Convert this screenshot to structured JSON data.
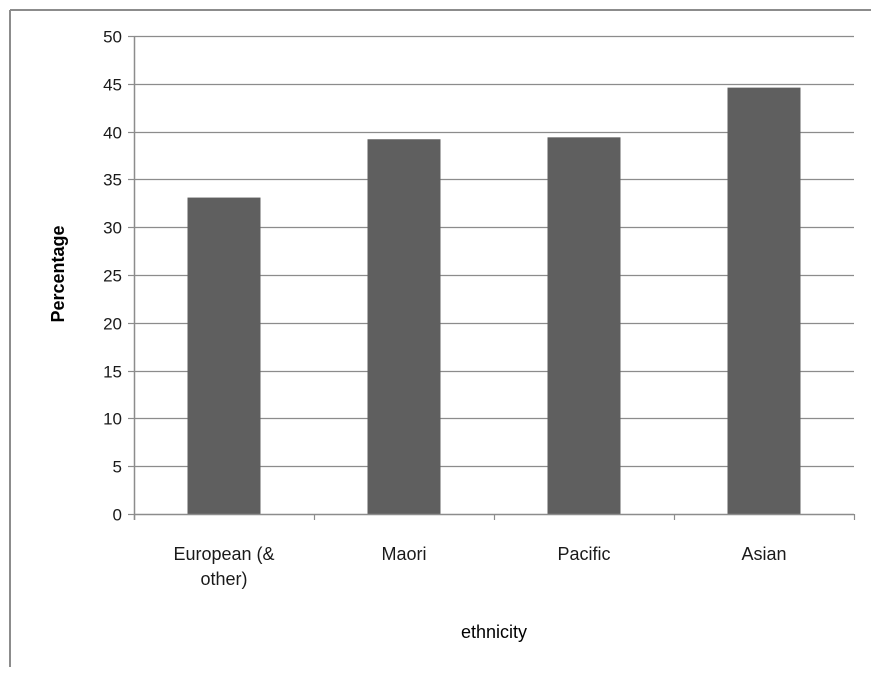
{
  "chart_data": {
    "type": "bar",
    "categories": [
      "European (& other)",
      "Maori",
      "Pacific",
      "Asian"
    ],
    "category_label_lines": [
      [
        "European (&",
        "other)"
      ],
      [
        "Maori"
      ],
      [
        "Pacific"
      ],
      [
        "Asian"
      ]
    ],
    "series": [
      {
        "values": [
          33.1,
          39.2,
          39.4,
          44.6
        ]
      }
    ],
    "title": "",
    "xlabel": "ethnicity",
    "ylabel": "Percentage",
    "ylim": [
      0,
      50
    ],
    "yticks": [
      0,
      5,
      10,
      15,
      20,
      25,
      30,
      35,
      40,
      45,
      50
    ],
    "grid": true,
    "legend": "none",
    "colors": {
      "bar": "#5f5f5f",
      "gridline": "#8c8c8c",
      "axis": "#8c8c8c",
      "frame": "#8c8c8c"
    }
  }
}
